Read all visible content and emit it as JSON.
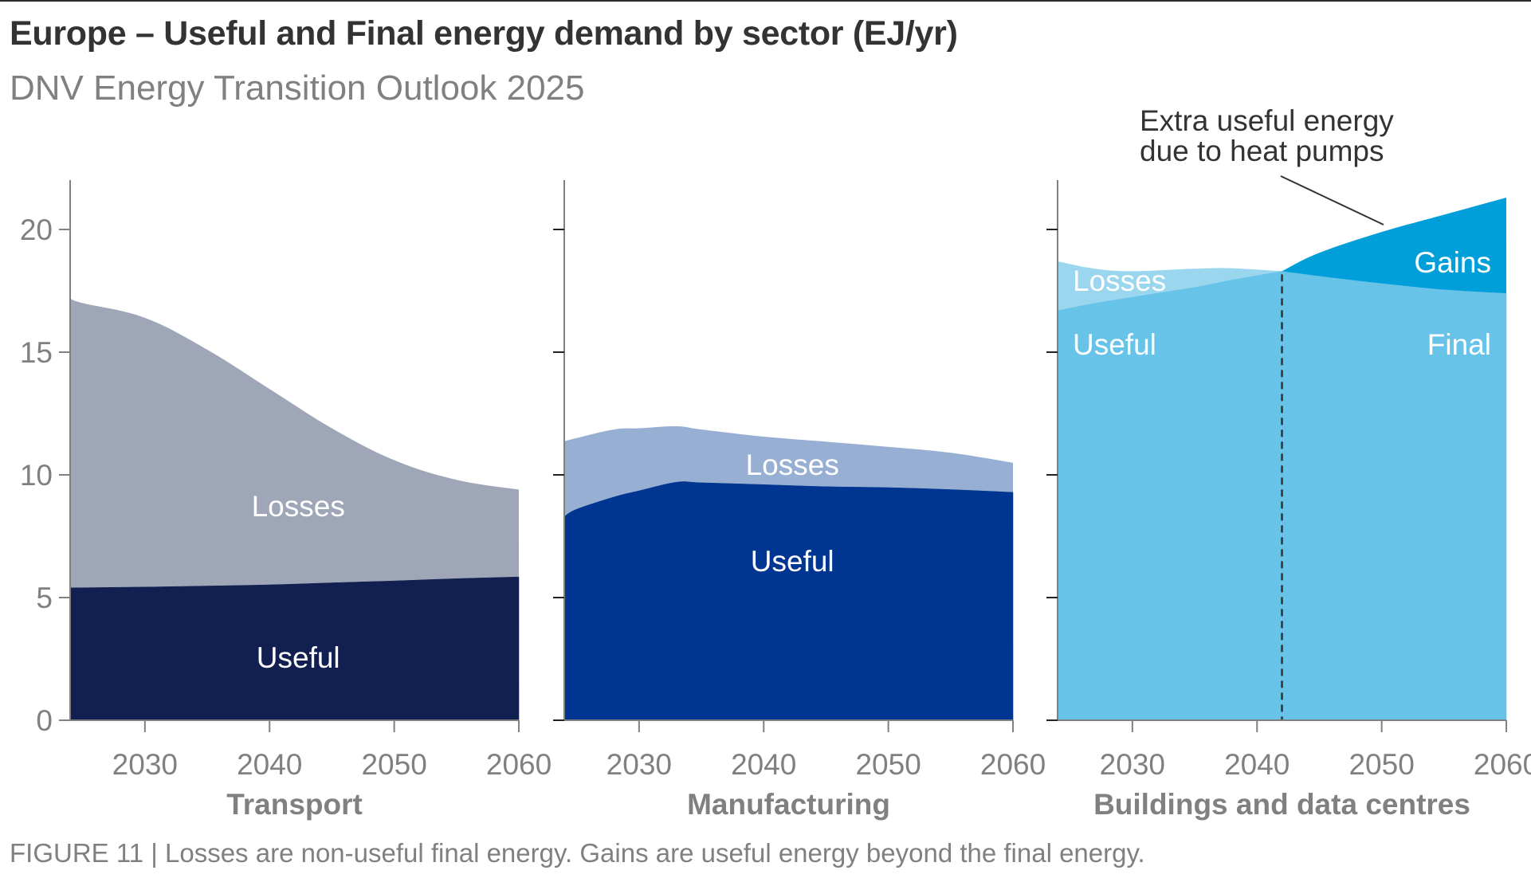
{
  "header": {
    "title": "Europe – Useful and Final energy demand by sector (EJ/yr)",
    "subtitle": "DNV Energy Transition Outlook 2025"
  },
  "caption": "FIGURE 11 | Losses are non-useful final energy. Gains are useful energy beyond the final energy.",
  "colors": {
    "transport_useful": "#112050",
    "transport_losses": "#9FA6B7",
    "manufacturing_useful": "#003591",
    "manufacturing_losses": "#98AFD4",
    "buildings_useful": "#68C3E8",
    "buildings_losses": "#9AD7EF",
    "buildings_gains": "#009FDA",
    "axis": "#808080",
    "text": "#333333"
  },
  "chart_data": {
    "type": "area",
    "title": "Europe – Useful and Final energy demand by sector (EJ/yr)",
    "ylabel": "EJ/yr",
    "ylim": [
      0,
      22
    ],
    "yticks": [
      0,
      5,
      10,
      15,
      20
    ],
    "xlim": [
      2024,
      2060
    ],
    "xticks": [
      2030,
      2040,
      2050,
      2060
    ],
    "grid": false,
    "legend": "none (inline labels)",
    "panels": [
      {
        "name": "Transport",
        "x": [
          2024,
          2025,
          2030,
          2035,
          2040,
          2045,
          2050,
          2055,
          2060
        ],
        "series": [
          {
            "name": "Useful",
            "values": [
              5.4,
              5.4,
              5.43,
              5.47,
              5.52,
              5.6,
              5.68,
              5.77,
              5.84
            ]
          },
          {
            "name": "Final (Useful + Losses)",
            "values": [
              17.2,
              17.0,
              16.4,
              15.1,
              13.5,
              11.9,
              10.6,
              9.8,
              9.4
            ]
          }
        ],
        "labels": {
          "upper": "Losses",
          "lower": "Useful"
        }
      },
      {
        "name": "Manufacturing",
        "x": [
          2024,
          2025,
          2028,
          2030,
          2033,
          2035,
          2040,
          2045,
          2050,
          2055,
          2060
        ],
        "series": [
          {
            "name": "Useful",
            "values": [
              8.3,
              8.6,
              9.1,
              9.35,
              9.7,
              9.68,
              9.6,
              9.52,
              9.48,
              9.4,
              9.29
            ]
          },
          {
            "name": "Final (Useful + Losses)",
            "values": [
              11.36,
              11.5,
              11.85,
              11.9,
              11.98,
              11.85,
              11.56,
              11.35,
              11.14,
              10.9,
              10.49
            ]
          }
        ],
        "labels": {
          "upper": "Losses",
          "lower": "Useful"
        }
      },
      {
        "name": "Buildings and data centres",
        "x": [
          2024,
          2027,
          2030,
          2035,
          2038,
          2042,
          2045,
          2050,
          2055,
          2060
        ],
        "series": [
          {
            "name": "Useful",
            "values": [
              16.7,
              17.0,
              17.25,
              17.65,
              17.95,
              18.3,
              19.05,
              19.9,
              20.6,
              21.3
            ]
          },
          {
            "name": "Final",
            "values": [
              18.7,
              18.4,
              18.3,
              18.4,
              18.42,
              18.3,
              18.1,
              17.8,
              17.55,
              17.4
            ]
          }
        ],
        "crossover_year": 2042,
        "labels": {
          "losses": "Losses",
          "useful": "Useful",
          "gains": "Gains",
          "final": "Final"
        },
        "annotation": [
          "Extra useful energy",
          "due to heat pumps"
        ]
      }
    ]
  }
}
